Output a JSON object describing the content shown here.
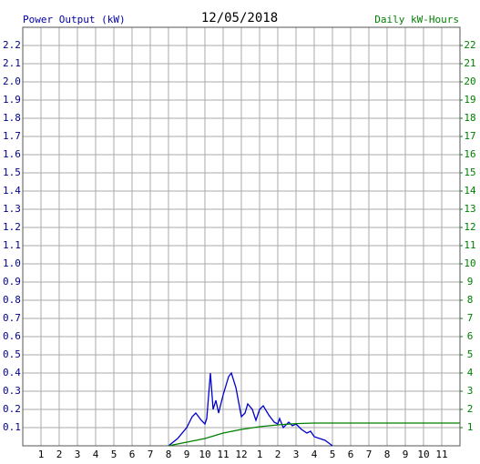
{
  "chart_data": {
    "type": "line",
    "title": "12/05/2018",
    "y_label": "Power Output (kW)",
    "y2_label": "Daily kW-Hours",
    "grid": true,
    "xlim": [
      0,
      24
    ],
    "xticks": [
      {
        "value": 1,
        "label": "1"
      },
      {
        "value": 2,
        "label": "2"
      },
      {
        "value": 3,
        "label": "3"
      },
      {
        "value": 4,
        "label": "4"
      },
      {
        "value": 5,
        "label": "5"
      },
      {
        "value": 6,
        "label": "6"
      },
      {
        "value": 7,
        "label": "7"
      },
      {
        "value": 8,
        "label": "8"
      },
      {
        "value": 9,
        "label": "9"
      },
      {
        "value": 10,
        "label": "10"
      },
      {
        "value": 11,
        "label": "11"
      },
      {
        "value": 12,
        "label": "12"
      },
      {
        "value": 13,
        "label": "1"
      },
      {
        "value": 14,
        "label": "2"
      },
      {
        "value": 15,
        "label": "3"
      },
      {
        "value": 16,
        "label": "4"
      },
      {
        "value": 17,
        "label": "5"
      },
      {
        "value": 18,
        "label": "6"
      },
      {
        "value": 19,
        "label": "7"
      },
      {
        "value": 20,
        "label": "8"
      },
      {
        "value": 21,
        "label": "9"
      },
      {
        "value": 22,
        "label": "10"
      },
      {
        "value": 23,
        "label": "11"
      }
    ],
    "ylim": [
      0,
      2.3
    ],
    "yticks": [
      0.1,
      0.2,
      0.3,
      0.4,
      0.5,
      0.6,
      0.7,
      0.8,
      0.9,
      {
        "value": 1,
        "label": "1.0"
      },
      1.1,
      1.2,
      1.3,
      1.4,
      1.5,
      1.6,
      1.7,
      1.8,
      1.9,
      {
        "value": 2,
        "label": "2.0"
      },
      2.1,
      2.2
    ],
    "y2lim": [
      0,
      23
    ],
    "y2ticks": [
      1,
      2,
      3,
      4,
      5,
      6,
      7,
      8,
      9,
      10,
      11,
      12,
      13,
      14,
      15,
      16,
      17,
      18,
      19,
      20,
      21,
      22
    ],
    "series": [
      {
        "name": "Power Output (kW)",
        "color": "#0000cc",
        "x": [
          8,
          8.5,
          9,
          9.3,
          9.5,
          9.8,
          10,
          10.1,
          10.3,
          10.45,
          10.6,
          10.75,
          11,
          11.3,
          11.45,
          11.7,
          12,
          12.2,
          12.35,
          12.6,
          12.8,
          13,
          13.2,
          13.5,
          13.8,
          14,
          14.1,
          14.3,
          14.6,
          14.8,
          15,
          15.3,
          15.6,
          15.8,
          16,
          16.3,
          16.6,
          17
        ],
        "values": [
          0,
          0.04,
          0.1,
          0.16,
          0.18,
          0.14,
          0.12,
          0.15,
          0.4,
          0.2,
          0.25,
          0.18,
          0.28,
          0.38,
          0.4,
          0.32,
          0.16,
          0.18,
          0.23,
          0.2,
          0.14,
          0.2,
          0.22,
          0.17,
          0.13,
          0.12,
          0.15,
          0.1,
          0.13,
          0.11,
          0.12,
          0.09,
          0.07,
          0.08,
          0.05,
          0.04,
          0.03,
          0
        ]
      },
      {
        "name": "Daily kW-Hours",
        "color": "#008000",
        "axis": "y2",
        "x": [
          8,
          9,
          10,
          11,
          12,
          13,
          14,
          15,
          16,
          24
        ],
        "values": [
          0,
          0.2,
          0.4,
          0.7,
          0.9,
          1.05,
          1.15,
          1.22,
          1.25,
          1.25
        ]
      }
    ]
  }
}
